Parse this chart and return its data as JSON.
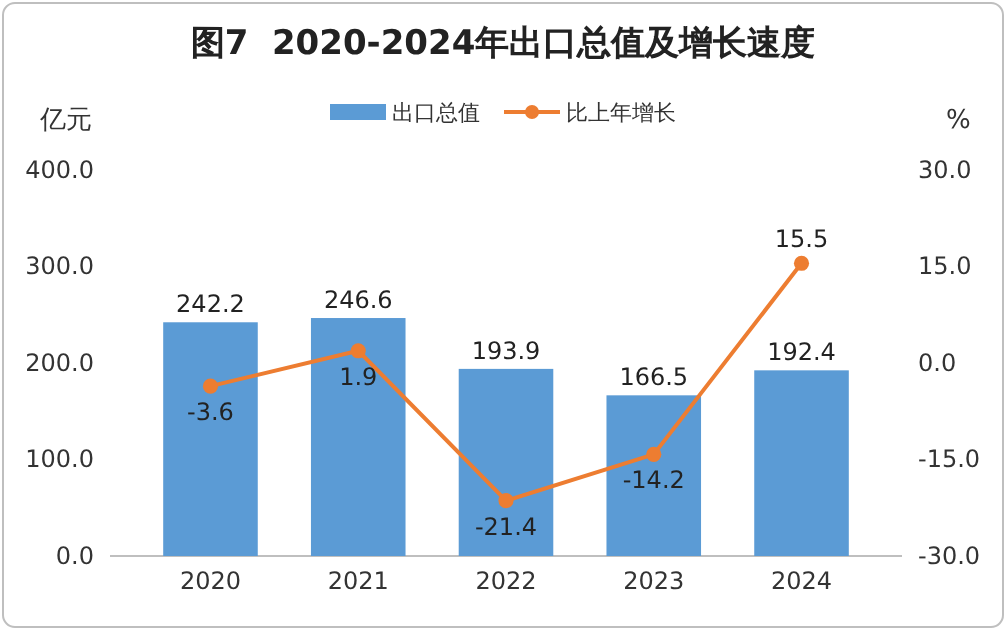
{
  "chart_data": {
    "type": "bar",
    "title": "图7  2020-2024年出口总值及增长速度",
    "ylabel": "亿元",
    "y2label": "%",
    "categories": [
      "2020",
      "2021",
      "2022",
      "2023",
      "2024"
    ],
    "series": [
      {
        "name": "出口总值",
        "color": "#5b9bd5",
        "values": [
          242.2,
          246.6,
          193.9,
          166.5,
          192.4
        ]
      },
      {
        "name": "比上年增长",
        "type": "line",
        "axis": "y2",
        "color": "#ed7d31",
        "values": [
          -3.6,
          1.9,
          -21.4,
          -14.2,
          15.5
        ]
      }
    ],
    "ylim": [
      0,
      400
    ],
    "yticks": [
      {
        "value": 0,
        "label": "0.0"
      },
      {
        "value": 100,
        "label": "100.0"
      },
      {
        "value": 200,
        "label": "200.0"
      },
      {
        "value": 300,
        "label": "300.0"
      },
      {
        "value": 400,
        "label": "400.0"
      }
    ],
    "y2lim": [
      -30,
      30
    ],
    "y2ticks": [
      {
        "value": -30,
        "label": "-30.0"
      },
      {
        "value": -15,
        "label": "-15.0"
      },
      {
        "value": 0,
        "label": "0.0"
      },
      {
        "value": 15,
        "label": "15.0"
      },
      {
        "value": 30,
        "label": "30.0"
      }
    ],
    "data_labels": true,
    "legend": "top",
    "marker": "circle",
    "line_style": "solid",
    "grid": false
  }
}
